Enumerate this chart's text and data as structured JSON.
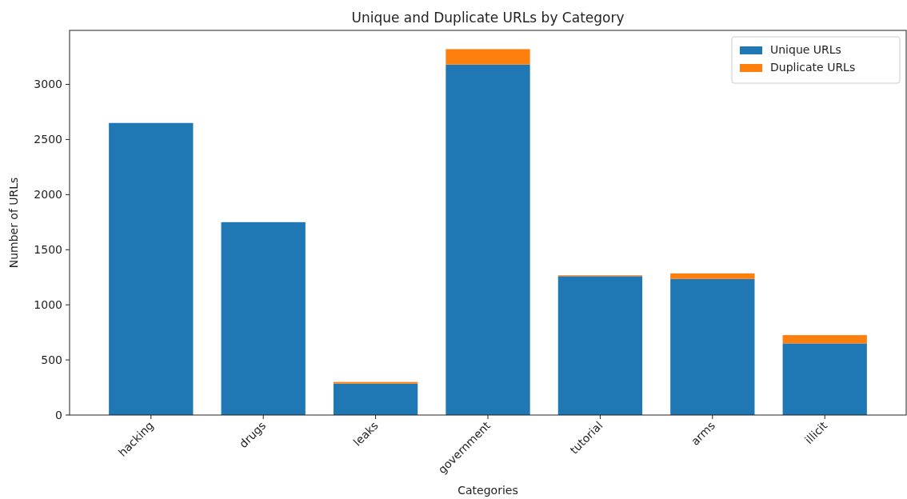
{
  "chart_data": {
    "type": "bar",
    "title": "Unique and Duplicate URLs by Category",
    "xlabel": "Categories",
    "ylabel": "Number of URLs",
    "categories": [
      "hacking",
      "drugs",
      "leaks",
      "government",
      "tutorial",
      "arms",
      "illicit"
    ],
    "series": [
      {
        "name": "Unique URLs",
        "color": "#1f77b4",
        "values": [
          2650,
          1750,
          285,
          3180,
          1260,
          1235,
          650
        ]
      },
      {
        "name": "Duplicate URLs",
        "color": "#ff7f0e",
        "values": [
          0,
          0,
          15,
          140,
          8,
          50,
          75
        ]
      }
    ],
    "stacked": true,
    "ylim": [
      0,
      3490
    ],
    "yticks": [
      0,
      500,
      1000,
      1500,
      2000,
      2500,
      3000
    ],
    "legend": "top right",
    "grid": false
  }
}
